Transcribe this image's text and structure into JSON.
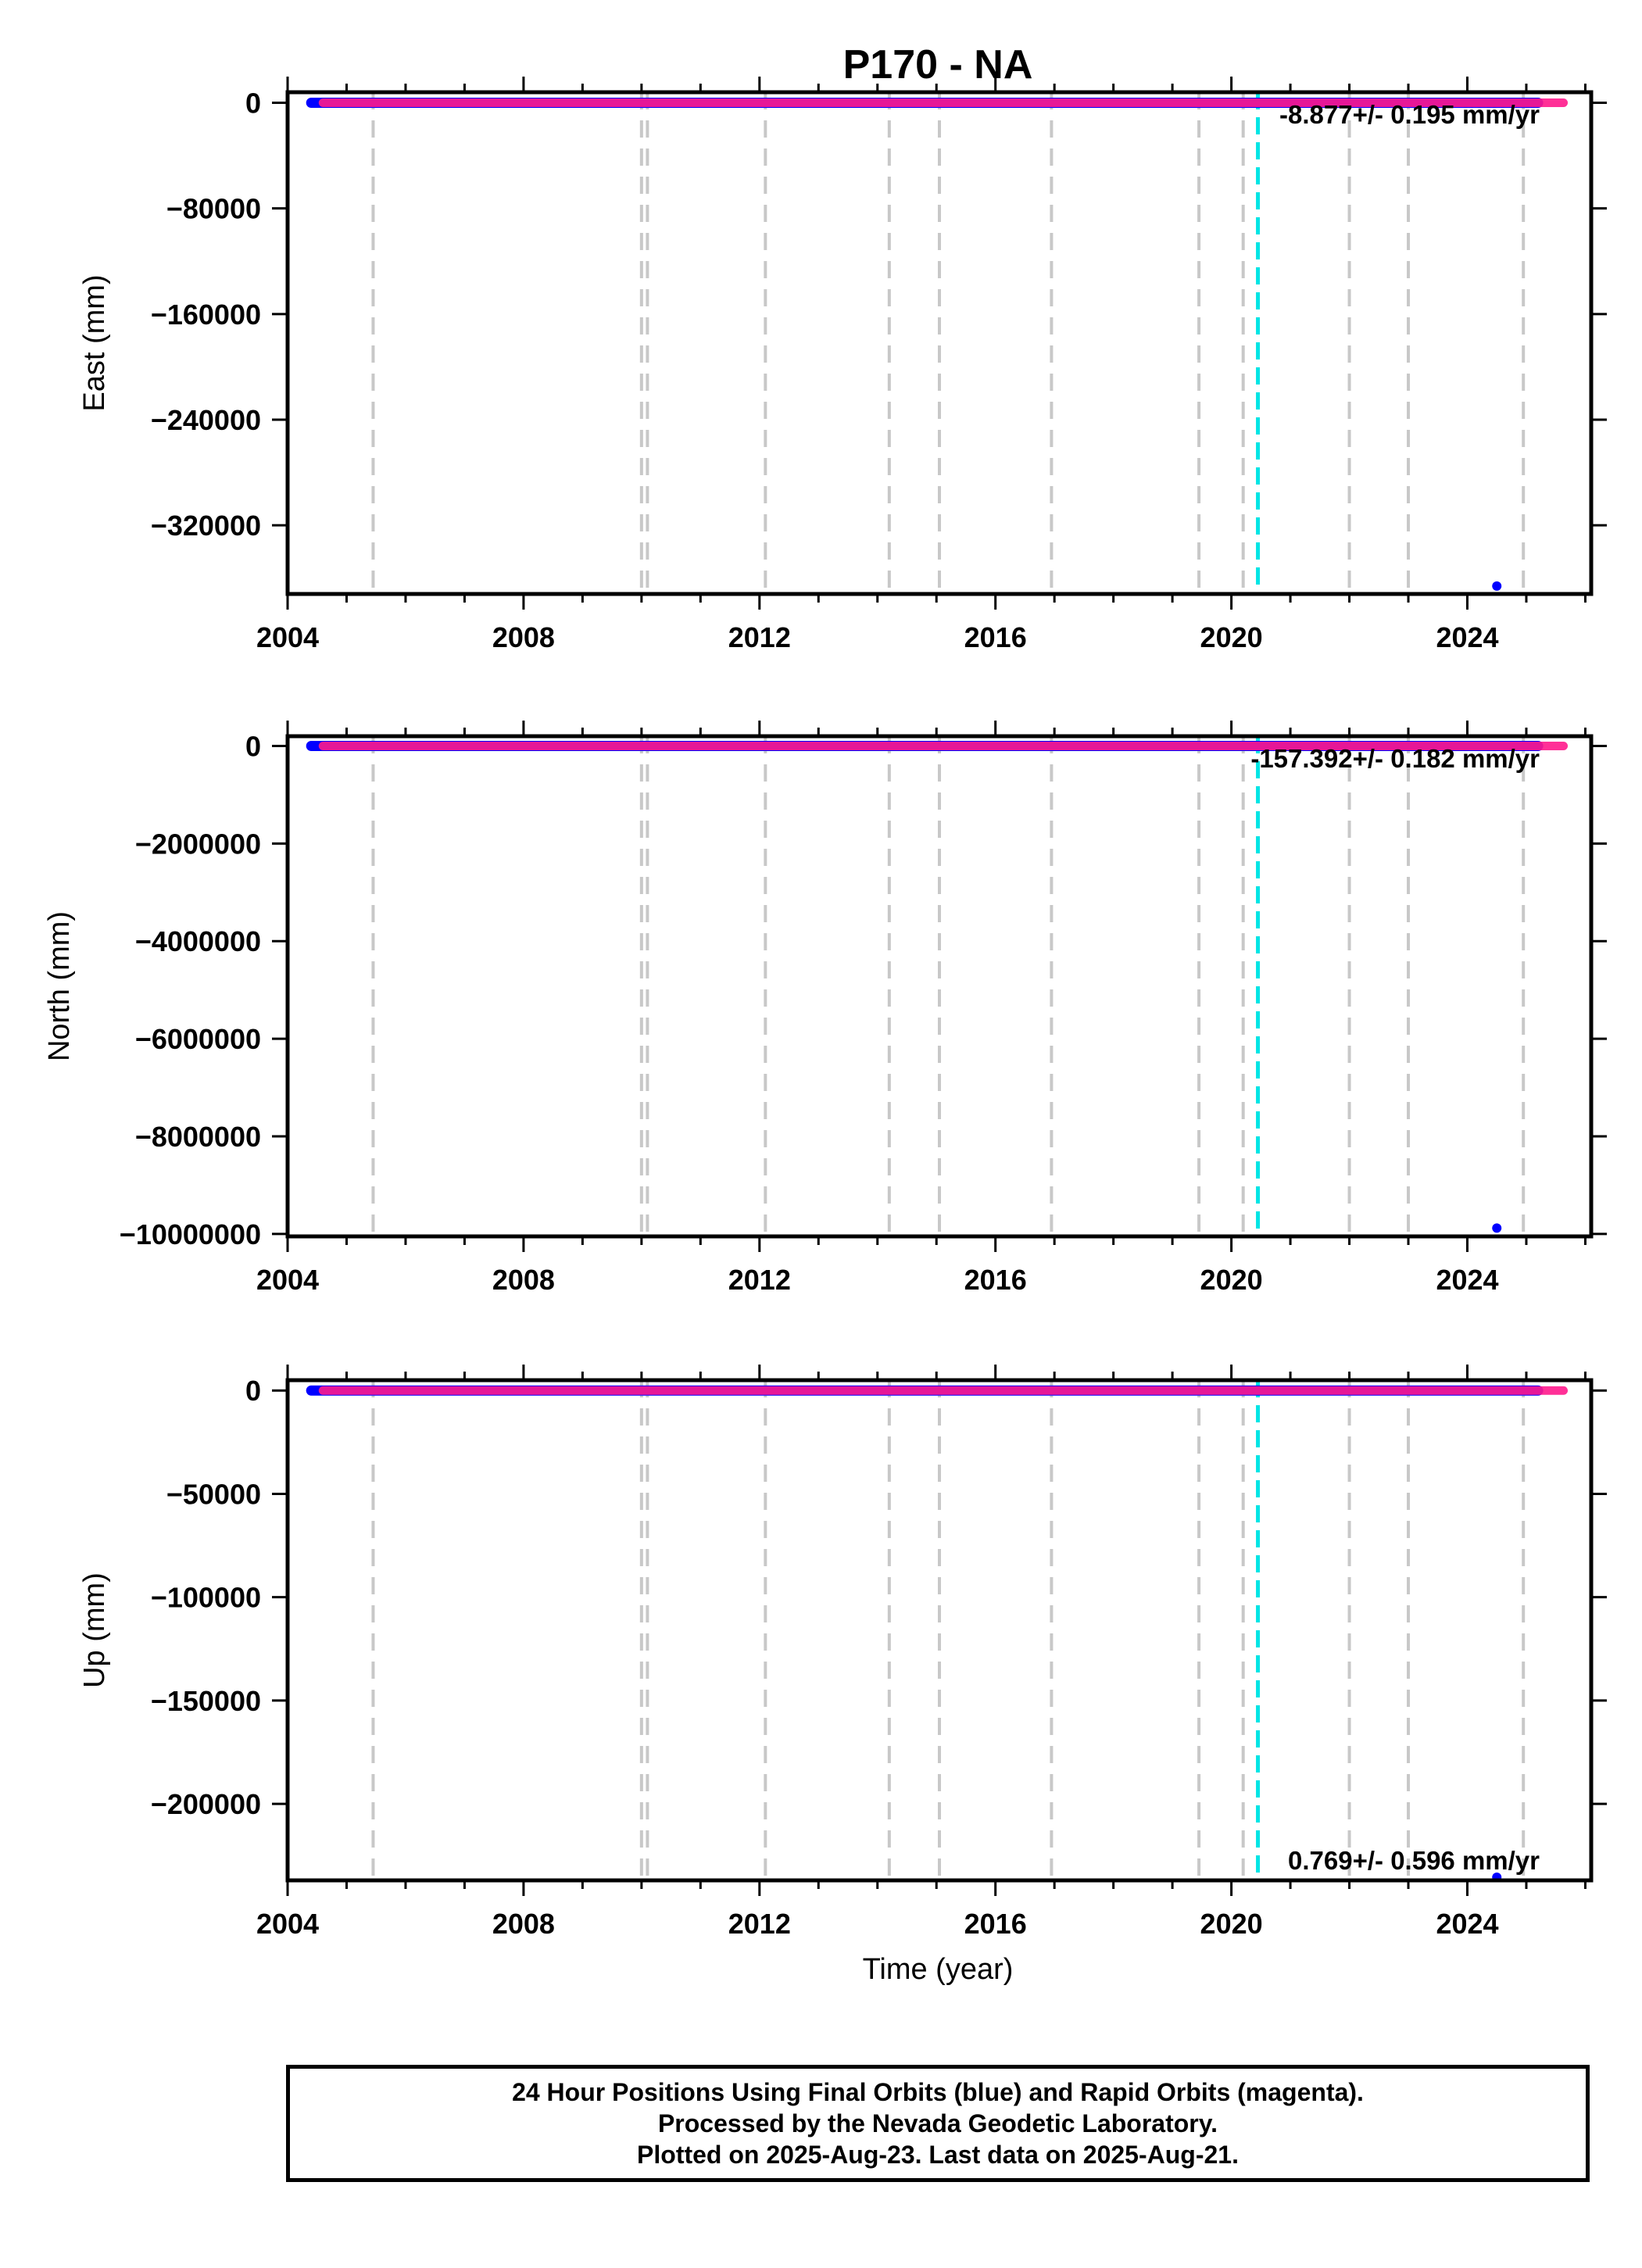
{
  "title": "P170 - NA",
  "xlabel": "Time (year)",
  "footer": {
    "line1": "24 Hour Positions Using Final Orbits (blue) and Rapid Orbits (magenta).",
    "line2": "Processed by the Nevada Geodetic Laboratory.",
    "line3": "Plotted on 2025-Aug-23. Last data on 2025-Aug-21."
  },
  "colors": {
    "final_orbits": "#0000ff",
    "rapid_orbits": "#ff1a8c",
    "equipment_change_line": "#c8c8c8",
    "earthquake_line": "#00e5e5",
    "frame": "#000000"
  },
  "chart_data": [
    {
      "type": "scatter",
      "ylabel": "East (mm)",
      "xlim": [
        2004.0,
        2026.1
      ],
      "ylim": [
        -372000,
        8000
      ],
      "xticks": [
        2004,
        2008,
        2012,
        2016,
        2020,
        2024
      ],
      "yticks": [
        0,
        -80000,
        -160000,
        -240000,
        -320000
      ],
      "ytick_labels": [
        "0",
        "−80000",
        "−160000",
        "−240000",
        "−320000"
      ],
      "series": [
        {
          "name": "Final Orbits",
          "color": "blue",
          "x_range": [
            2004.4,
            2025.2
          ],
          "y_baseline": 0,
          "outliers": [
            {
              "x": 2024.5,
              "y": -366000
            }
          ]
        },
        {
          "name": "Rapid Orbits",
          "color": "magenta",
          "x_range": [
            2004.6,
            2025.63
          ],
          "y_baseline": 0
        }
      ],
      "equipment_changes": [
        2005.45,
        2010.0,
        2010.1,
        2012.1,
        2014.2,
        2015.05,
        2016.95,
        2019.45,
        2020.2,
        2022.0,
        2023.0,
        2024.95
      ],
      "earthquakes": [
        2020.45
      ],
      "rate_text": "-8.877+/- 0.195 mm/yr",
      "rate_position": "top-right"
    },
    {
      "type": "scatter",
      "ylabel": "North (mm)",
      "xlim": [
        2004.0,
        2026.1
      ],
      "ylim": [
        -10050000,
        200000
      ],
      "xticks": [
        2004,
        2008,
        2012,
        2016,
        2020,
        2024
      ],
      "yticks": [
        0,
        -2000000,
        -4000000,
        -6000000,
        -8000000,
        -10000000
      ],
      "ytick_labels": [
        "0",
        "−2000000",
        "−4000000",
        "−6000000",
        "−8000000",
        "−10000000"
      ],
      "series": [
        {
          "name": "Final Orbits",
          "color": "blue",
          "x_range": [
            2004.4,
            2025.2
          ],
          "y_baseline": 0,
          "outliers": [
            {
              "x": 2024.5,
              "y": -9880000
            }
          ]
        },
        {
          "name": "Rapid Orbits",
          "color": "magenta",
          "x_range": [
            2004.6,
            2025.63
          ],
          "y_baseline": 0
        }
      ],
      "equipment_changes": [
        2005.45,
        2010.0,
        2010.1,
        2012.1,
        2014.2,
        2015.05,
        2016.95,
        2019.45,
        2020.2,
        2022.0,
        2023.0,
        2024.95
      ],
      "earthquakes": [
        2020.45
      ],
      "rate_text": "-157.392+/- 0.182 mm/yr",
      "rate_position": "top-right"
    },
    {
      "type": "scatter",
      "ylabel": "Up (mm)",
      "xlim": [
        2004.0,
        2026.1
      ],
      "ylim": [
        -237000,
        5000
      ],
      "xticks": [
        2004,
        2008,
        2012,
        2016,
        2020,
        2024
      ],
      "yticks": [
        0,
        -50000,
        -100000,
        -150000,
        -200000
      ],
      "ytick_labels": [
        "0",
        "−50000",
        "−100000",
        "−150000",
        "−200000"
      ],
      "series": [
        {
          "name": "Final Orbits",
          "color": "blue",
          "x_range": [
            2004.4,
            2025.2
          ],
          "y_baseline": 0,
          "outliers": [
            {
              "x": 2024.5,
              "y": -235500
            }
          ]
        },
        {
          "name": "Rapid Orbits",
          "color": "magenta",
          "x_range": [
            2004.6,
            2025.63
          ],
          "y_baseline": 0
        }
      ],
      "equipment_changes": [
        2005.45,
        2010.0,
        2010.1,
        2012.1,
        2014.2,
        2015.05,
        2016.95,
        2019.45,
        2020.2,
        2022.0,
        2023.0,
        2024.95
      ],
      "earthquakes": [
        2020.45
      ],
      "rate_text": "0.769+/- 0.596 mm/yr",
      "rate_position": "bottom-right"
    }
  ]
}
